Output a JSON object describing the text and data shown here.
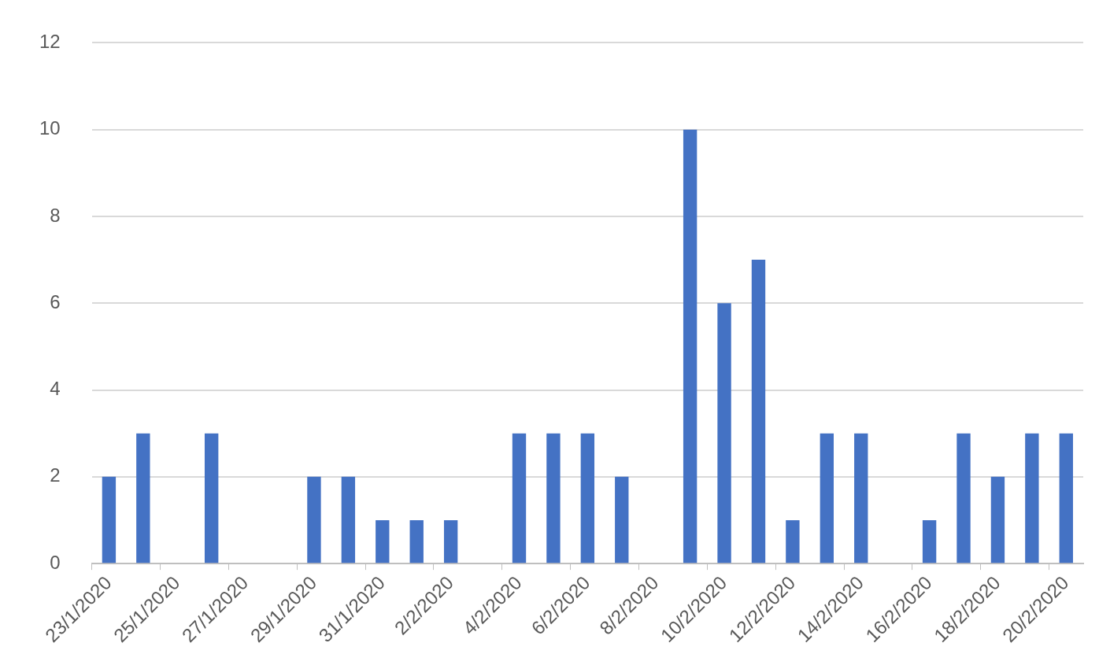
{
  "chart_data": {
    "type": "bar",
    "categories": [
      "23/1/2020",
      null,
      "25/1/2020",
      null,
      "27/1/2020",
      null,
      "29/1/2020",
      null,
      "31/1/2020",
      null,
      "2/2/2020",
      null,
      "4/2/2020",
      null,
      "6/2/2020",
      null,
      "8/2/2020",
      null,
      "10/2/2020",
      null,
      "12/2/2020",
      null,
      "14/2/2020",
      null,
      "16/2/2020",
      null,
      "18/2/2020",
      null,
      "20/2/2020"
    ],
    "values": [
      2,
      3,
      0,
      3,
      0,
      0,
      2,
      2,
      1,
      1,
      1,
      0,
      3,
      3,
      3,
      2,
      0,
      10,
      6,
      7,
      1,
      3,
      3,
      0,
      1,
      3,
      2,
      3,
      3
    ],
    "color": "#4472c4",
    "ylim": [
      0,
      12
    ],
    "yticks": [
      0,
      2,
      4,
      6,
      8,
      10,
      12
    ],
    "grid": "y",
    "legend": false
  }
}
